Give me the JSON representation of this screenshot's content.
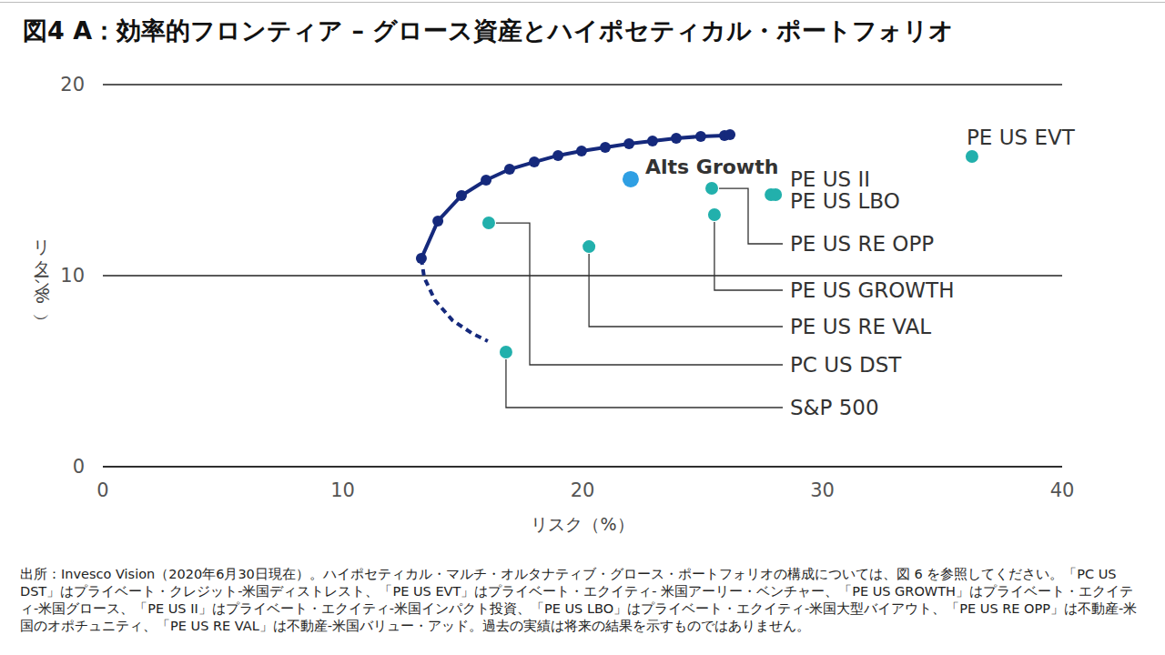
{
  "chart_data": {
    "type": "scatter",
    "title": "図4 A：効率的フロンティア – グロース資産とハイポセティカル・ポートフォリオ",
    "x_label": "リスク（%）",
    "y_label": "リターン（%）",
    "xlim": [
      0,
      40
    ],
    "xticks": [
      0,
      10,
      20,
      30,
      40
    ],
    "ylim": [
      0,
      20
    ],
    "yticks": [
      0,
      10,
      20
    ],
    "grid": true,
    "series": [
      {
        "type": "line",
        "color": "#15297c",
        "marker": "circle",
        "line_style": "solid",
        "x": [
          13.28,
          13.97,
          14.95,
          15.98,
          16.96,
          17.99,
          18.98,
          19.96,
          20.95,
          21.94,
          22.92,
          23.91,
          24.93,
          25.92,
          26.15
        ],
        "values": [
          10.9,
          12.86,
          14.19,
          15.0,
          15.57,
          15.95,
          16.29,
          16.52,
          16.71,
          16.9,
          17.05,
          17.19,
          17.29,
          17.33,
          17.38
        ]
      },
      {
        "type": "line",
        "color": "#15297c",
        "marker": "none",
        "line_style": "dashed",
        "x": [
          13.28,
          13.4,
          13.85,
          14.57,
          15.37,
          16.05
        ],
        "values": [
          10.9,
          9.9,
          8.71,
          7.67,
          7.0,
          6.57
        ]
      },
      {
        "type": "scatter",
        "marker": "circle",
        "labels": [
          "Alts Growth",
          "PE US EVT",
          "PE US II",
          "PE US LBO",
          "PE US RE OPP",
          "PE US GROWTH",
          "PE US RE VAL",
          "PC US DST",
          "S&P 500"
        ],
        "colors": [
          "#2f9fe3",
          "#22b0ac",
          "#22b0ac",
          "#22b0ac",
          "#22b0ac",
          "#22b0ac",
          "#22b0ac",
          "#22b0ac",
          "#22b0ac"
        ],
        "x": [
          22.01,
          36.24,
          27.86,
          28.05,
          25.39,
          25.5,
          20.27,
          16.09,
          16.81
        ],
        "values": [
          15.05,
          16.24,
          14.24,
          14.24,
          14.57,
          13.19,
          11.52,
          12.76,
          6.0
        ]
      }
    ],
    "footnote": "出所：Invesco Vision（2020年6月30日現在）。ハイポセティカル・マルチ・オルタナティブ・グロース・ポートフォリオの構成については、図 6 を参照してください。「PC US DST」はプライベート・クレジット-米国ディストレスト、「PE US EVT」はプライベート・エクイティ- 米国アーリー・ベンチャー、「PE US GROWTH」はプライベート・エクイティ-米国グロース、「PE US II」はプライベート・エクイティ-米国インパクト投資、「PE US  LBO」はプライベート・エクイティ-米国大型バイアウト、「PE US RE OPP」は不動産-米国のオポチュニティ、「PE US RE VAL」は不動産-米国バリュー・アッド。過去の実績は将来の結果を示すものではありません。"
  }
}
